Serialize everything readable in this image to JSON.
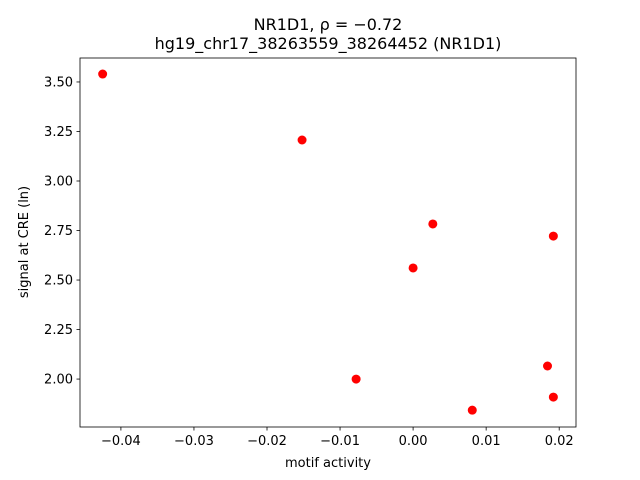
{
  "chart_data": {
    "type": "scatter",
    "title": "NR1D1, ρ = −0.72",
    "subtitle": "hg19_chr17_38263559_38264452 (NR1D1)",
    "x_label": "motif activity",
    "y_label": "signal at CRE (ln)",
    "color": "#ff0000",
    "x": [
      -0.0425,
      -0.0152,
      0.0027,
      0.0192,
      0.0,
      0.0184,
      -0.0078,
      0.0192,
      0.0081
    ],
    "values": [
      3.54,
      3.207,
      2.783,
      2.722,
      2.561,
      2.066,
      2.0,
      1.909,
      1.843
    ],
    "xlim": [
      -0.0456,
      0.0223
    ],
    "ylim": [
      1.758,
      3.621
    ],
    "xticks": [
      {
        "value": -0.04,
        "label": "−0.04"
      },
      {
        "value": -0.03,
        "label": "−0.03"
      },
      {
        "value": -0.02,
        "label": "−0.02"
      },
      {
        "value": -0.01,
        "label": "−0.01"
      },
      {
        "value": 0,
        "label": "0.00"
      },
      {
        "value": 0.01,
        "label": "0.01"
      },
      {
        "value": 0.02,
        "label": "0.02"
      }
    ],
    "yticks": [
      {
        "value": 2,
        "label": "2.00"
      },
      2.25,
      {
        "value": 2.5,
        "label": "2.50"
      },
      2.75,
      {
        "value": 3,
        "label": "3.00"
      },
      3.25,
      {
        "value": 3.5,
        "label": "3.50"
      }
    ]
  }
}
